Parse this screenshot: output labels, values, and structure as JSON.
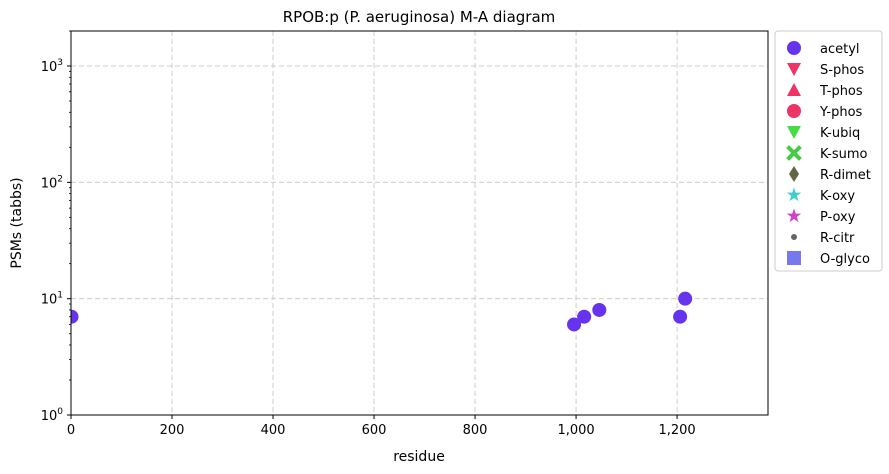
{
  "chart_data": {
    "type": "scatter",
    "title": "RPOB:p (P. aeruginosa) M-A diagram",
    "xlabel": "residue",
    "ylabel": "PSMs (tabbs)",
    "xlim": [
      0,
      1380
    ],
    "ylim": [
      1,
      2000
    ],
    "yscale": "log",
    "grid": true,
    "legend_position": "outside-right",
    "x_ticks": [
      "0",
      "200",
      "400",
      "600",
      "800",
      "1,000",
      "1,200"
    ],
    "x_tick_values": [
      0,
      200,
      400,
      600,
      800,
      1000,
      1200
    ],
    "y_tick_values": [
      1,
      10,
      100,
      1000
    ],
    "y_ticks": [
      {
        "base": "10",
        "exp": "0"
      },
      {
        "base": "10",
        "exp": "1"
      },
      {
        "base": "10",
        "exp": "2"
      },
      {
        "base": "10",
        "exp": "3"
      }
    ],
    "series": [
      {
        "name": "acetyl",
        "marker": "circle",
        "color": "#6633ee",
        "points": [
          {
            "x": 1,
            "y": 7
          },
          {
            "x": 996,
            "y": 6
          },
          {
            "x": 1016,
            "y": 7
          },
          {
            "x": 1046,
            "y": 8
          },
          {
            "x": 1206,
            "y": 7
          },
          {
            "x": 1216,
            "y": 10
          }
        ]
      },
      {
        "name": "S-phos",
        "marker": "triangle-down",
        "color": "#ee3366",
        "points": []
      },
      {
        "name": "T-phos",
        "marker": "triangle-up",
        "color": "#ee3366",
        "points": []
      },
      {
        "name": "Y-phos",
        "marker": "circle",
        "color": "#ee3366",
        "points": []
      },
      {
        "name": "K-ubiq",
        "marker": "triangle-down",
        "color": "#44dd44",
        "points": []
      },
      {
        "name": "K-sumo",
        "marker": "x-filled",
        "color": "#44cc44",
        "points": []
      },
      {
        "name": "R-dimet",
        "marker": "thin-diamond",
        "color": "#666644",
        "points": []
      },
      {
        "name": "K-oxy",
        "marker": "star",
        "color": "#44cccc",
        "points": []
      },
      {
        "name": "P-oxy",
        "marker": "star",
        "color": "#cc44cc",
        "points": []
      },
      {
        "name": "R-citr",
        "marker": "small-circle",
        "color": "#666666",
        "points": []
      },
      {
        "name": "O-glyco",
        "marker": "square",
        "color": "#7777ee",
        "points": []
      }
    ]
  }
}
